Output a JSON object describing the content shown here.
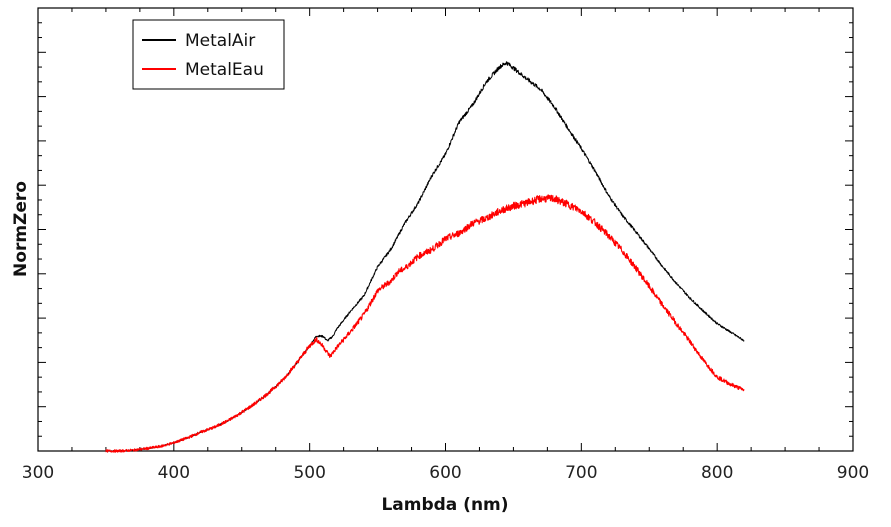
{
  "chart_data": {
    "type": "line",
    "xlabel": "Lambda (nm)",
    "ylabel": "NormZero",
    "xlim": [
      300,
      900
    ],
    "ylim": [
      0,
      1.0
    ],
    "x_ticks": [
      "300",
      "400",
      "500",
      "600",
      "700",
      "800",
      "900"
    ],
    "grid": false,
    "legend_position": "top-left",
    "series": [
      {
        "name": "MetalAir",
        "color": "#000000",
        "points": [
          [
            350,
            0.0
          ],
          [
            360,
            0.0
          ],
          [
            370,
            0.002
          ],
          [
            380,
            0.006
          ],
          [
            390,
            0.011
          ],
          [
            400,
            0.02
          ],
          [
            410,
            0.032
          ],
          [
            420,
            0.046
          ],
          [
            430,
            0.058
          ],
          [
            440,
            0.074
          ],
          [
            450,
            0.094
          ],
          [
            460,
            0.116
          ],
          [
            470,
            0.142
          ],
          [
            480,
            0.172
          ],
          [
            490,
            0.212
          ],
          [
            500,
            0.256
          ],
          [
            505,
            0.28
          ],
          [
            510,
            0.279
          ],
          [
            513,
            0.268
          ],
          [
            517,
            0.279
          ],
          [
            520,
            0.297
          ],
          [
            530,
            0.34
          ],
          [
            540,
            0.378
          ],
          [
            550,
            0.448
          ],
          [
            560,
            0.492
          ],
          [
            570,
            0.554
          ],
          [
            580,
            0.604
          ],
          [
            590,
            0.67
          ],
          [
            600,
            0.722
          ],
          [
            610,
            0.8
          ],
          [
            620,
            0.842
          ],
          [
            630,
            0.898
          ],
          [
            640,
            0.935
          ],
          [
            645,
            0.945
          ],
          [
            650,
            0.932
          ],
          [
            660,
            0.905
          ],
          [
            670,
            0.88
          ],
          [
            680,
            0.838
          ],
          [
            690,
            0.786
          ],
          [
            700,
            0.736
          ],
          [
            710,
            0.682
          ],
          [
            720,
            0.622
          ],
          [
            730,
            0.574
          ],
          [
            740,
            0.534
          ],
          [
            750,
            0.492
          ],
          [
            760,
            0.448
          ],
          [
            770,
            0.408
          ],
          [
            780,
            0.372
          ],
          [
            790,
            0.34
          ],
          [
            800,
            0.31
          ],
          [
            810,
            0.289
          ],
          [
            820,
            0.268
          ]
        ]
      },
      {
        "name": "MetalEau",
        "color": "#ff0000",
        "points": [
          [
            350,
            0.0
          ],
          [
            360,
            0.0
          ],
          [
            370,
            0.002
          ],
          [
            380,
            0.006
          ],
          [
            390,
            0.011
          ],
          [
            400,
            0.02
          ],
          [
            410,
            0.032
          ],
          [
            420,
            0.046
          ],
          [
            430,
            0.058
          ],
          [
            440,
            0.074
          ],
          [
            450,
            0.094
          ],
          [
            460,
            0.116
          ],
          [
            470,
            0.142
          ],
          [
            480,
            0.172
          ],
          [
            490,
            0.212
          ],
          [
            500,
            0.256
          ],
          [
            505,
            0.272
          ],
          [
            510,
            0.254
          ],
          [
            515,
            0.23
          ],
          [
            520,
            0.252
          ],
          [
            530,
            0.29
          ],
          [
            540,
            0.332
          ],
          [
            550,
            0.39
          ],
          [
            560,
            0.414
          ],
          [
            565,
            0.436
          ],
          [
            570,
            0.444
          ],
          [
            580,
            0.474
          ],
          [
            590,
            0.49
          ],
          [
            600,
            0.516
          ],
          [
            610,
            0.53
          ],
          [
            620,
            0.554
          ],
          [
            630,
            0.566
          ],
          [
            640,
            0.584
          ],
          [
            650,
            0.596
          ],
          [
            660,
            0.604
          ],
          [
            670,
            0.614
          ],
          [
            680,
            0.614
          ],
          [
            690,
            0.6
          ],
          [
            700,
            0.584
          ],
          [
            710,
            0.556
          ],
          [
            720,
            0.524
          ],
          [
            730,
            0.488
          ],
          [
            740,
            0.446
          ],
          [
            750,
            0.4
          ],
          [
            760,
            0.354
          ],
          [
            770,
            0.31
          ],
          [
            780,
            0.266
          ],
          [
            790,
            0.22
          ],
          [
            800,
            0.18
          ],
          [
            810,
            0.162
          ],
          [
            820,
            0.148
          ]
        ]
      }
    ]
  }
}
